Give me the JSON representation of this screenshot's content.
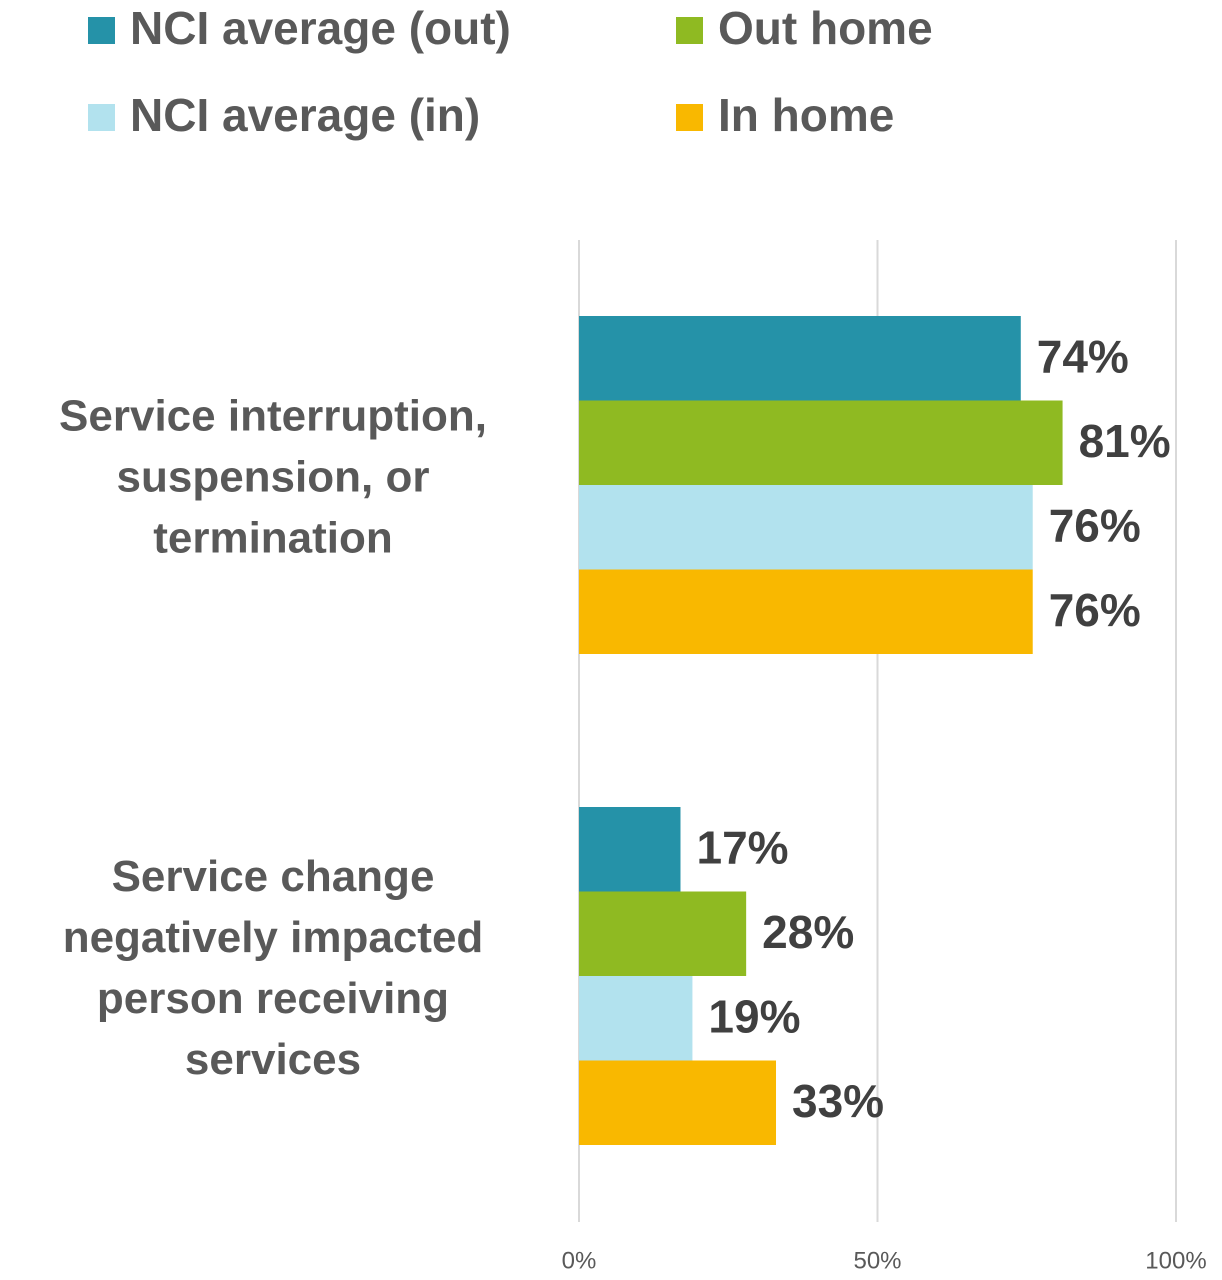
{
  "chart_data": {
    "type": "hbar",
    "categories": [
      "Service interruption, suspension, or termination",
      "Service change negatively impacted person receiving services"
    ],
    "series": [
      {
        "name": "NCI average (out)",
        "color": "#2592a8",
        "values": [
          74,
          17
        ],
        "value_labels": [
          "74%",
          "17%"
        ]
      },
      {
        "name": "Out home",
        "color": "#8fba22",
        "values": [
          81,
          28
        ],
        "value_labels": [
          "81%",
          "28%"
        ]
      },
      {
        "name": "NCI average (in)",
        "color": "#b2e2ee",
        "values": [
          76,
          19
        ],
        "value_labels": [
          "76%",
          "19%"
        ]
      },
      {
        "name": "In home",
        "color": "#f9b800",
        "values": [
          76,
          33
        ],
        "value_labels": [
          "76%",
          "33%"
        ]
      }
    ],
    "xlim": [
      0,
      100
    ],
    "xticks": [
      {
        "value": 0,
        "label": "0%"
      },
      {
        "value": 50,
        "label": "50%"
      },
      {
        "value": 100,
        "label": "100%"
      }
    ],
    "grid": true,
    "legend": "top"
  }
}
